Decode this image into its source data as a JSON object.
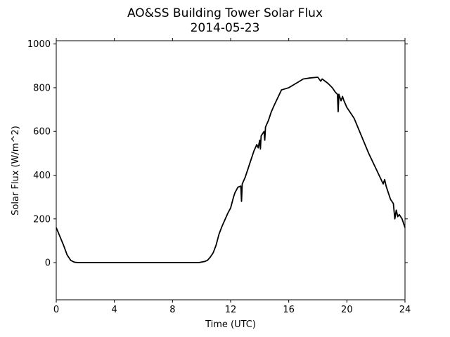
{
  "chart_data": {
    "type": "line",
    "title": "AO&SS Building Tower Solar Flux",
    "subtitle": "2014-05-23",
    "xlabel": "Time (UTC)",
    "ylabel": "Solar Flux (W/m^2)",
    "xlim": [
      0,
      24
    ],
    "ylim": [
      -170,
      1015
    ],
    "x_ticks": [
      0,
      4,
      8,
      12,
      16,
      20,
      24
    ],
    "y_ticks": [
      0,
      200,
      400,
      600,
      800,
      1000
    ],
    "x_tick_labels": [
      "0",
      "4",
      "8",
      "12",
      "16",
      "20",
      "24"
    ],
    "y_tick_labels": [
      "0",
      "200",
      "400",
      "600",
      "800",
      "1000"
    ],
    "grid": false,
    "line_color": "#000000",
    "series": [
      {
        "x": [
          0,
          0.25,
          0.5,
          0.75,
          1.0,
          1.25,
          1.5,
          1.75,
          2.0,
          3.0,
          4.0,
          6.0,
          8.0,
          9.0,
          9.8,
          10.2,
          10.4,
          10.6,
          10.8,
          11.0,
          11.2,
          11.4,
          11.6,
          11.8,
          12.0,
          12.2,
          12.3,
          12.5,
          12.7,
          12.75,
          12.8,
          12.9,
          13.0,
          13.2,
          13.4,
          13.6,
          13.8,
          13.9,
          14.0,
          14.05,
          14.1,
          14.2,
          14.3,
          14.35,
          14.4,
          14.6,
          14.8,
          15.0,
          15.5,
          16.0,
          16.5,
          17.0,
          17.5,
          18.0,
          18.2,
          18.3,
          18.5,
          18.7,
          19.0,
          19.2,
          19.35,
          19.4,
          19.45,
          19.6,
          19.7,
          19.8,
          20.0,
          20.5,
          21.0,
          21.5,
          22.0,
          22.5,
          22.6,
          22.7,
          22.8,
          23.0,
          23.2,
          23.3,
          23.4,
          23.5,
          23.6,
          23.8,
          24.0
        ],
        "y": [
          160,
          120,
          80,
          35,
          10,
          2,
          0,
          0,
          0,
          0,
          0,
          0,
          0,
          0,
          0,
          5,
          10,
          25,
          45,
          80,
          130,
          165,
          195,
          225,
          250,
          300,
          320,
          345,
          350,
          280,
          360,
          375,
          390,
          430,
          470,
          510,
          540,
          525,
          560,
          520,
          580,
          590,
          600,
          560,
          620,
          650,
          690,
          720,
          790,
          800,
          820,
          840,
          845,
          848,
          830,
          840,
          830,
          820,
          800,
          780,
          770,
          690,
          770,
          740,
          760,
          740,
          710,
          660,
          580,
          500,
          430,
          360,
          380,
          350,
          330,
          290,
          270,
          200,
          240,
          210,
          220,
          200,
          160
        ]
      }
    ]
  }
}
